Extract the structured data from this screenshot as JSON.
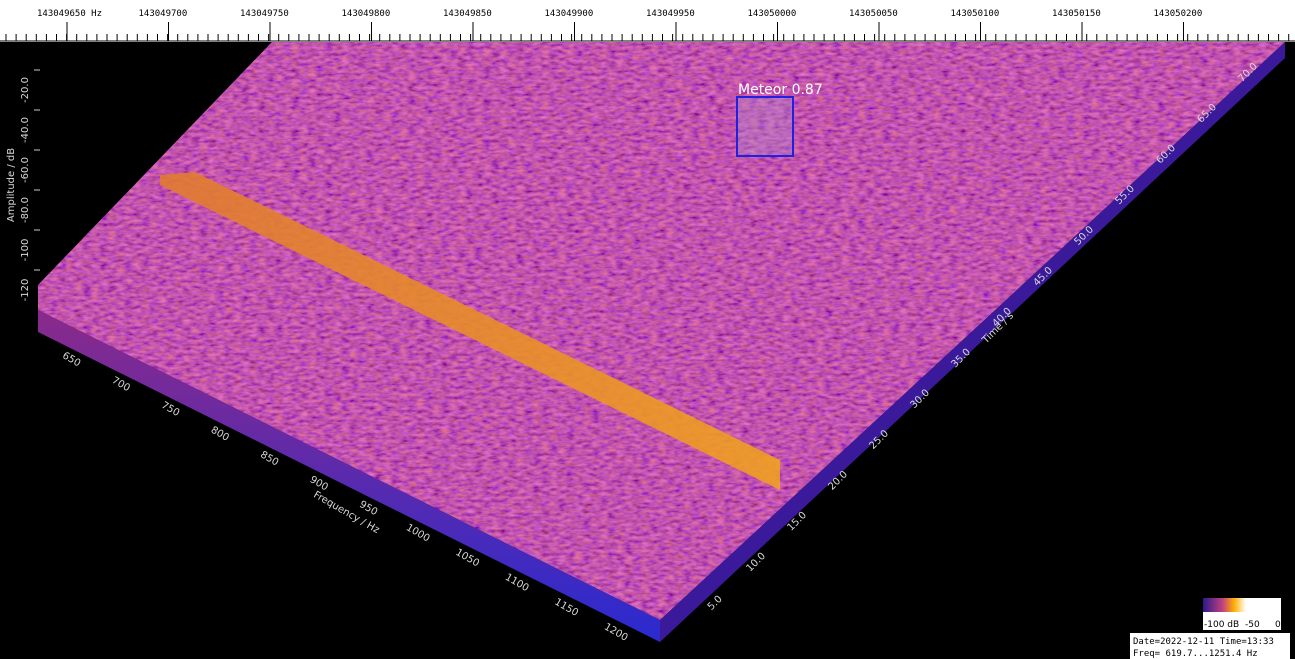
{
  "top_scale": {
    "labels": [
      "143049650 Hz",
      "143049700",
      "143049750",
      "143049800",
      "143049850",
      "143049900",
      "143049950",
      "143050000",
      "143050050",
      "143050100",
      "143050150",
      "143050200"
    ]
  },
  "amplitude_axis": {
    "title": "Amplitude / dB",
    "labels": [
      "-20.0",
      "-40.0",
      "-60.0",
      "-80.0",
      "-100",
      "-120"
    ]
  },
  "frequency_axis": {
    "title": "Frequency / Hz",
    "labels": [
      "650",
      "700",
      "750",
      "800",
      "850",
      "900",
      "950",
      "1000",
      "1050",
      "1100",
      "1150",
      "1200"
    ]
  },
  "time_axis": {
    "title": "Time / s",
    "labels": [
      "5.0",
      "10.0",
      "15.0",
      "20.0",
      "25.0",
      "30.0",
      "35.0",
      "40.0",
      "45.0",
      "50.0",
      "55.0",
      "60.0",
      "65.0",
      "70.0"
    ]
  },
  "detection": {
    "label": "Meteor 0.87"
  },
  "colorbar": {
    "labels": [
      "-100 dB",
      "-50",
      "0"
    ]
  },
  "status": {
    "lines": [
      "Date=2022-12-11 Time=13:33",
      "Freq= 619.7...1251.4 Hz"
    ]
  }
}
